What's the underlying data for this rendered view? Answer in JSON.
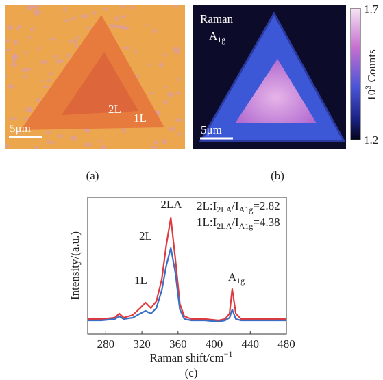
{
  "panels": {
    "a": {
      "caption": "(a)",
      "label_inner": "2L",
      "label_outer": "1L",
      "scale_bar": "5μm"
    },
    "b": {
      "caption": "(b)",
      "title": "Raman",
      "mode": [
        "A",
        "1g"
      ],
      "scale_bar": "5μm",
      "colorbar_max": "1.7",
      "colorbar_min": "1.2",
      "colorbar_label": [
        "10",
        "3",
        " Counts"
      ]
    }
  },
  "chart_data": {
    "type": "line",
    "caption": "(c)",
    "x_label": [
      "Raman shift/cm",
      "−1"
    ],
    "y_label": "Intensity/(a.u.)",
    "x": [
      260,
      275,
      290,
      295,
      300,
      310,
      318,
      324,
      330,
      336,
      342,
      347,
      352,
      357,
      362,
      367,
      375,
      390,
      405,
      412,
      417,
      420,
      424,
      430,
      445,
      465,
      480
    ],
    "series": [
      {
        "name": "2L",
        "color": "#e0393e",
        "values": [
          11,
          11,
          12,
          15,
          12,
          14,
          19,
          23,
          19,
          24,
          40,
          65,
          85,
          55,
          22,
          13,
          11,
          11,
          10,
          11,
          15,
          33,
          15,
          11,
          11,
          11,
          11
        ]
      },
      {
        "name": "1L",
        "color": "#3a6fc4",
        "values": [
          10,
          10,
          11,
          13,
          11,
          12,
          15,
          17,
          15,
          19,
          32,
          50,
          63,
          45,
          18,
          11,
          10,
          10,
          9,
          10,
          12,
          18,
          11,
          10,
          10,
          10,
          10
        ]
      }
    ],
    "xlim": [
      260,
      480
    ],
    "xticks": [
      280,
      320,
      360,
      400,
      440,
      480
    ],
    "ylim": [
      0,
      100
    ],
    "annotations": [
      [
        "2LA"
      ],
      [
        "A",
        "1g"
      ],
      [
        "2L:I",
        "2LA",
        "/I",
        "A1g",
        "=2.82"
      ],
      [
        "1L:I",
        "2LA",
        "/I",
        "A1g",
        "=4.38"
      ]
    ]
  }
}
